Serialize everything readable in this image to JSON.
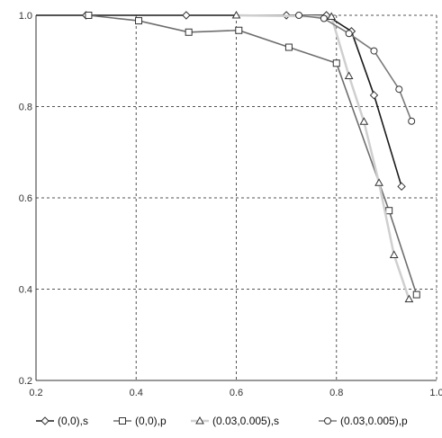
{
  "chart_data": {
    "type": "line",
    "title": "",
    "xlabel": "",
    "ylabel": "",
    "xlim": [
      0.2,
      1.0
    ],
    "ylim": [
      0.2,
      1.0
    ],
    "x_ticks": [
      "0.2",
      "0.4",
      "0.6",
      "0.8",
      "1.0"
    ],
    "y_ticks": [
      "0.2",
      "0.4",
      "0.6",
      "0.8",
      "1.0"
    ],
    "grid": true,
    "legend_position": "bottom",
    "series": [
      {
        "name": "(0,0),s",
        "marker": "diamond",
        "color": "#1a1a1a",
        "points": [
          [
            0.2,
            1.0
          ],
          [
            0.3,
            1.0
          ],
          [
            0.5,
            1.0
          ],
          [
            0.7,
            1.0
          ],
          [
            0.78,
            1.0
          ],
          [
            0.83,
            0.965
          ],
          [
            0.875,
            0.825
          ],
          [
            0.93,
            0.625
          ]
        ]
      },
      {
        "name": "(0,0),p",
        "marker": "square",
        "color": "#6e6e6e",
        "points": [
          [
            0.305,
            1.0
          ],
          [
            0.405,
            0.988
          ],
          [
            0.505,
            0.963
          ],
          [
            0.605,
            0.967
          ],
          [
            0.705,
            0.93
          ],
          [
            0.8,
            0.895
          ],
          [
            0.905,
            0.572
          ],
          [
            0.96,
            0.388
          ]
        ]
      },
      {
        "name": "(0.03,0.005),s",
        "marker": "triangle",
        "color": "#cfcfcf",
        "points": [
          [
            0.6,
            1.0
          ],
          [
            0.79,
            0.997
          ],
          [
            0.825,
            0.867
          ],
          [
            0.855,
            0.767
          ],
          [
            0.885,
            0.633
          ],
          [
            0.915,
            0.475
          ],
          [
            0.945,
            0.378
          ]
        ]
      },
      {
        "name": "(0.03,0.005),p",
        "marker": "circle",
        "color": "#7a7a7a",
        "points": [
          [
            0.725,
            1.0
          ],
          [
            0.775,
            0.993
          ],
          [
            0.825,
            0.96
          ],
          [
            0.875,
            0.922
          ],
          [
            0.925,
            0.838
          ],
          [
            0.95,
            0.768
          ]
        ]
      }
    ]
  }
}
